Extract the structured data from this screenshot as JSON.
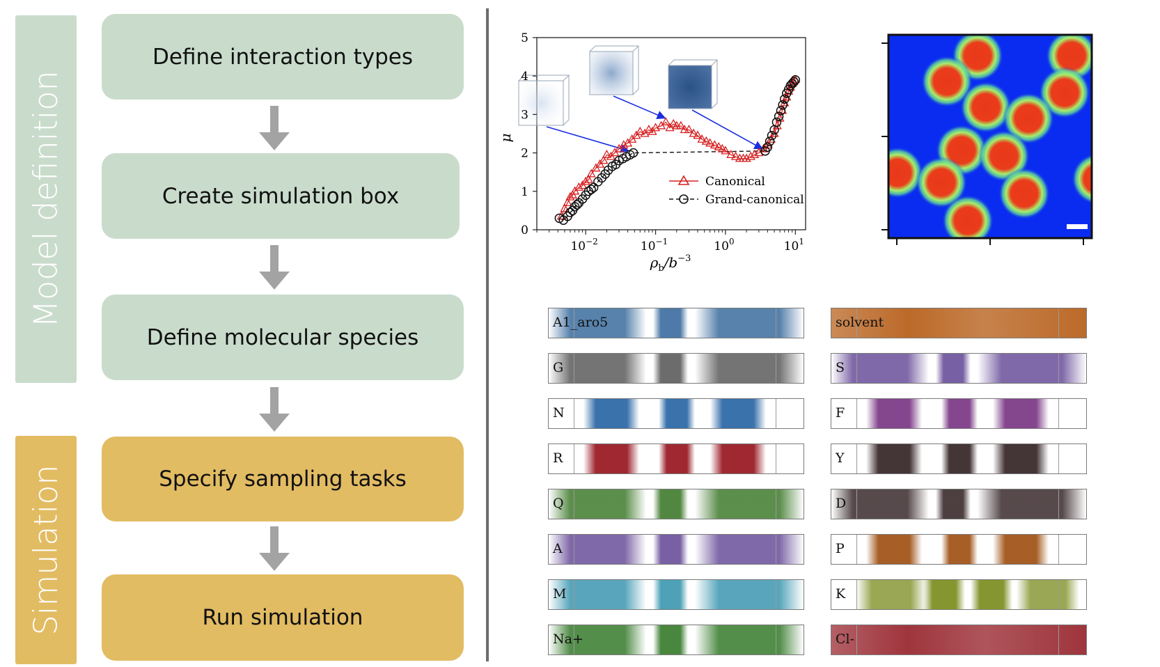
{
  "workflow": {
    "groups": [
      {
        "label": "Model definition",
        "color": "#c9dccc"
      },
      {
        "label": "Simulation",
        "color": "#e2bc63"
      }
    ],
    "steps": [
      "Define interaction types",
      "Create simulation box",
      "Define molecular species",
      "Specify sampling tasks",
      "Run simulation"
    ]
  },
  "chart_data": {
    "type": "scatter",
    "x_scale": "log",
    "xlim": [
      0.002,
      14
    ],
    "ylim": [
      0,
      5
    ],
    "xlabel_main": "ρ",
    "xlabel_sub": "b",
    "xlabel_unit": "/b",
    "xlabel_exp": "−3",
    "ylabel": "μ",
    "yticks": [
      "0",
      "1",
      "2",
      "3",
      "4",
      "5"
    ],
    "xticks": [
      {
        "base": "10",
        "exp": "−2"
      },
      {
        "base": "10",
        "exp": "−1"
      },
      {
        "base": "10",
        "exp": "0"
      },
      {
        "base": "10",
        "exp": "1"
      }
    ],
    "legend_position": "bottom-right",
    "series": [
      {
        "name": "Canonical",
        "color": "#d62020",
        "marker": "triangle",
        "x": [
          0.0045,
          0.005,
          0.0055,
          0.006,
          0.0065,
          0.007,
          0.008,
          0.009,
          0.01,
          0.011,
          0.012,
          0.014,
          0.016,
          0.018,
          0.02,
          0.023,
          0.026,
          0.03,
          0.035,
          0.04,
          0.046,
          0.053,
          0.06,
          0.07,
          0.08,
          0.09,
          0.1,
          0.12,
          0.14,
          0.16,
          0.18,
          0.2,
          0.23,
          0.26,
          0.3,
          0.35,
          0.4,
          0.46,
          0.53,
          0.6,
          0.7,
          0.8,
          0.9,
          1.0,
          1.2,
          1.4,
          1.6,
          1.8,
          2.0,
          2.3,
          2.6,
          3.0,
          3.5,
          4.0,
          4.5,
          5.0,
          5.5,
          6.0,
          6.5,
          7.0,
          7.5,
          8.0,
          8.5,
          9.0,
          9.5,
          10.0
        ],
        "y": [
          0.35,
          0.55,
          0.7,
          0.85,
          0.9,
          1.0,
          1.1,
          1.15,
          1.25,
          1.3,
          1.45,
          1.6,
          1.7,
          1.8,
          1.95,
          1.9,
          2.0,
          2.1,
          2.2,
          2.25,
          2.35,
          2.45,
          2.55,
          2.5,
          2.6,
          2.55,
          2.65,
          2.7,
          2.8,
          2.65,
          2.75,
          2.7,
          2.7,
          2.6,
          2.6,
          2.5,
          2.45,
          2.35,
          2.3,
          2.25,
          2.2,
          2.15,
          2.1,
          2.05,
          1.95,
          1.9,
          1.85,
          1.85,
          1.85,
          1.9,
          1.95,
          2.0,
          2.1,
          2.2,
          2.35,
          2.5,
          2.7,
          2.9,
          3.1,
          3.3,
          3.45,
          3.6,
          3.7,
          3.8,
          3.85,
          3.9
        ]
      },
      {
        "name": "Grand-canonical",
        "color": "#111111",
        "marker": "circle",
        "linestyle": "dashed",
        "x": [
          0.0042,
          0.0048,
          0.0055,
          0.006,
          0.0065,
          0.007,
          0.0075,
          0.008,
          0.009,
          0.01,
          0.011,
          0.012,
          0.013,
          0.015,
          0.017,
          0.019,
          0.021,
          0.024,
          0.027,
          0.03,
          0.034,
          0.038,
          0.043,
          0.048,
          3.7,
          4.0,
          4.3,
          4.6,
          5.0,
          5.4,
          5.8,
          6.2,
          6.6,
          7.0,
          7.5,
          8.0,
          8.5,
          9.0,
          9.5,
          10.0
        ],
        "y": [
          0.3,
          0.25,
          0.35,
          0.45,
          0.5,
          0.6,
          0.65,
          0.7,
          0.8,
          0.9,
          1.0,
          1.05,
          1.1,
          1.25,
          1.35,
          1.45,
          1.55,
          1.65,
          1.7,
          1.8,
          1.85,
          1.9,
          1.95,
          2.0,
          2.05,
          2.15,
          2.3,
          2.45,
          2.6,
          2.8,
          2.95,
          3.1,
          3.25,
          3.4,
          3.55,
          3.65,
          3.75,
          3.8,
          3.85,
          3.9
        ],
        "plateau": [
          0.048,
          3.7,
          2.05
        ]
      }
    ],
    "inset_boxes": [
      {
        "density": "low",
        "at_x": 0.045,
        "at_y": 2.0
      },
      {
        "density": "mid",
        "at_x": 0.15,
        "at_y": 2.85
      },
      {
        "density": "high",
        "at_x": 3.7,
        "at_y": 2.05
      }
    ]
  },
  "density_map": {
    "background": "#0a2cf0",
    "droplet_core": "#e83a1a",
    "droplet_halo": "#8ef06a",
    "droplet_count": 14,
    "has_scale_bar": true
  },
  "strips": {
    "left": [
      {
        "label": "A1_aro5",
        "color": "#3a6c9e",
        "pattern": "3dense-faded"
      },
      {
        "label": "G",
        "color": "#5c5c5c",
        "pattern": "3dense-faded"
      },
      {
        "label": "N",
        "color": "#2f6aa8",
        "pattern": "3dense-sharp"
      },
      {
        "label": "R",
        "color": "#9a1c26",
        "pattern": "3dense-sharp"
      },
      {
        "label": "Q",
        "color": "#3f7a2c",
        "pattern": "3dense-faded"
      },
      {
        "label": "A",
        "color": "#6a4f9a",
        "pattern": "3dense-faded"
      },
      {
        "label": "M",
        "color": "#3c97b0",
        "pattern": "3dense-faded"
      },
      {
        "label": "Na+",
        "color": "#357a2a",
        "pattern": "3dense-faded"
      }
    ],
    "right": [
      {
        "label": "solvent",
        "color": "#b8621e",
        "pattern": "uniform"
      },
      {
        "label": "S",
        "color": "#6a4f9a",
        "pattern": "3dense-faded"
      },
      {
        "label": "F",
        "color": "#7e3c88",
        "pattern": "3dense-sharp"
      },
      {
        "label": "Y",
        "color": "#3a2a2c",
        "pattern": "3dense-sharp"
      },
      {
        "label": "D",
        "color": "#3a2a2c",
        "pattern": "3dense-faded"
      },
      {
        "label": "P",
        "color": "#a2561a",
        "pattern": "3dense-sharp"
      },
      {
        "label": "K",
        "color": "#788a1a",
        "pattern": "4dense"
      },
      {
        "label": "Cl-",
        "color": "#9a2a32",
        "pattern": "uniform"
      }
    ]
  }
}
